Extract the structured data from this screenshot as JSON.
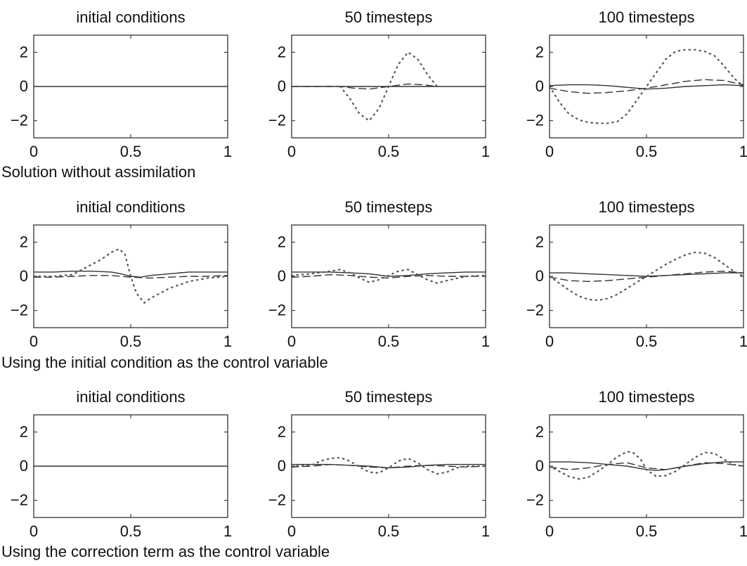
{
  "rows": [
    {
      "caption": "Solution without assimilation",
      "panels": [
        {
          "title": "initial conditions"
        },
        {
          "title": "50 timesteps"
        },
        {
          "title": "100 timesteps"
        }
      ]
    },
    {
      "caption": "Using the initial condition as the control variable",
      "panels": [
        {
          "title": "initial conditions"
        },
        {
          "title": "50 timesteps"
        },
        {
          "title": "100 timesteps"
        }
      ]
    },
    {
      "caption": "Using the correction term as the control variable",
      "panels": [
        {
          "title": "initial conditions"
        },
        {
          "title": "50 timesteps"
        },
        {
          "title": "100 timesteps"
        }
      ]
    }
  ],
  "chart_data": [
    {
      "type": "line",
      "title": "initial conditions",
      "xlim": [
        0,
        1
      ],
      "ylim": [
        -3,
        3
      ],
      "xticks": [
        0,
        0.5,
        1
      ],
      "xtick_labels": [
        "0",
        "0.5",
        "1"
      ],
      "yticks": [
        2,
        0,
        -2
      ],
      "ytick_labels": [
        "2",
        "0",
        "−2"
      ],
      "series": [
        {
          "style": "solid",
          "x": [
            0,
            1
          ],
          "y": [
            0,
            0
          ]
        }
      ]
    },
    {
      "type": "line",
      "title": "50 timesteps",
      "xlim": [
        0,
        1
      ],
      "ylim": [
        -3,
        3
      ],
      "xticks": [
        0,
        0.5,
        1
      ],
      "xtick_labels": [
        "0",
        "0.5",
        "1"
      ],
      "yticks": [
        2,
        0,
        -2
      ],
      "ytick_labels": [
        "2",
        "0",
        "−2"
      ],
      "series": [
        {
          "style": "solid",
          "x": [
            0,
            1
          ],
          "y": [
            0,
            0
          ]
        },
        {
          "style": "dashed",
          "x": [
            0,
            0.25,
            0.32,
            0.4,
            0.5,
            0.6,
            0.68,
            0.75
          ],
          "y": [
            0,
            0,
            -0.1,
            -0.15,
            0,
            0.15,
            0.1,
            0
          ]
        },
        {
          "style": "dotted",
          "x": [
            0.25,
            0.3,
            0.35,
            0.4,
            0.45,
            0.5,
            0.55,
            0.6,
            0.65,
            0.7,
            0.75
          ],
          "y": [
            0,
            -0.7,
            -1.6,
            -2.0,
            -1.3,
            0,
            1.3,
            2.0,
            1.6,
            0.7,
            0
          ]
        }
      ]
    },
    {
      "type": "line",
      "title": "100 timesteps",
      "xlim": [
        0,
        1
      ],
      "ylim": [
        -3,
        3
      ],
      "xticks": [
        0,
        0.5,
        1
      ],
      "xtick_labels": [
        "0",
        "0.5",
        "1"
      ],
      "yticks": [
        2,
        0,
        -2
      ],
      "ytick_labels": [
        "2",
        "0",
        "−2"
      ],
      "series": [
        {
          "style": "solid",
          "x": [
            0,
            0.1,
            0.2,
            0.3,
            0.4,
            0.5,
            0.6,
            0.7,
            0.8,
            0.9,
            1
          ],
          "y": [
            0.05,
            0.1,
            0.1,
            0.05,
            -0.05,
            -0.15,
            -0.1,
            0,
            0.05,
            0.1,
            0.05
          ]
        },
        {
          "style": "dashed",
          "x": [
            0,
            0.1,
            0.2,
            0.3,
            0.4,
            0.5,
            0.6,
            0.7,
            0.8,
            0.9,
            1
          ],
          "y": [
            -0.1,
            -0.3,
            -0.4,
            -0.35,
            -0.25,
            -0.1,
            0.1,
            0.3,
            0.4,
            0.35,
            0.1
          ]
        },
        {
          "style": "dotted",
          "x": [
            0,
            0.05,
            0.1,
            0.15,
            0.2,
            0.25,
            0.3,
            0.35,
            0.4,
            0.45,
            0.5,
            0.55,
            0.6,
            0.65,
            0.7,
            0.75,
            0.8,
            0.85,
            0.9,
            0.95,
            1
          ],
          "y": [
            0,
            -0.9,
            -1.6,
            -1.95,
            -2.1,
            -2.15,
            -2.15,
            -2.05,
            -1.6,
            -0.8,
            0,
            0.8,
            1.6,
            2.05,
            2.15,
            2.15,
            2.05,
            1.8,
            1.2,
            0.5,
            0
          ]
        }
      ]
    },
    {
      "type": "line",
      "title": "initial conditions",
      "xlim": [
        0,
        1
      ],
      "ylim": [
        -3,
        3
      ],
      "xticks": [
        0,
        0.5,
        1
      ],
      "xtick_labels": [
        "0",
        "0.5",
        "1"
      ],
      "yticks": [
        2,
        0,
        -2
      ],
      "ytick_labels": [
        "2",
        "0",
        "−2"
      ],
      "series": [
        {
          "style": "solid",
          "x": [
            0,
            0.1,
            0.2,
            0.3,
            0.4,
            0.45,
            0.5,
            0.55,
            0.6,
            0.7,
            0.8,
            0.9,
            1
          ],
          "y": [
            0.25,
            0.25,
            0.3,
            0.3,
            0.25,
            0.15,
            0,
            -0.05,
            0.05,
            0.15,
            0.25,
            0.25,
            0.25
          ]
        },
        {
          "style": "dashed",
          "x": [
            0,
            0.1,
            0.2,
            0.3,
            0.4,
            0.5,
            0.6,
            0.7,
            0.8,
            0.9,
            1
          ],
          "y": [
            -0.05,
            -0.05,
            0,
            0.05,
            0.05,
            -0.05,
            -0.1,
            -0.05,
            0,
            0,
            0.05
          ]
        },
        {
          "style": "dotted",
          "x": [
            0,
            0.1,
            0.2,
            0.3,
            0.35,
            0.4,
            0.44,
            0.47,
            0.5,
            0.53,
            0.57,
            0.6,
            0.65,
            0.7,
            0.8,
            0.9,
            1
          ],
          "y": [
            0,
            0,
            0.1,
            0.7,
            1.0,
            1.4,
            1.6,
            1.3,
            0,
            -1.0,
            -1.55,
            -1.3,
            -1.0,
            -0.7,
            -0.3,
            -0.1,
            0
          ]
        }
      ]
    },
    {
      "type": "line",
      "title": "50 timesteps",
      "xlim": [
        0,
        1
      ],
      "ylim": [
        -3,
        3
      ],
      "xticks": [
        0,
        0.5,
        1
      ],
      "xtick_labels": [
        "0",
        "0.5",
        "1"
      ],
      "yticks": [
        2,
        0,
        -2
      ],
      "ytick_labels": [
        "2",
        "0",
        "−2"
      ],
      "series": [
        {
          "style": "solid",
          "x": [
            0,
            0.1,
            0.2,
            0.3,
            0.4,
            0.5,
            0.6,
            0.7,
            0.8,
            0.9,
            1
          ],
          "y": [
            0.25,
            0.25,
            0.25,
            0.2,
            0.15,
            0,
            0.05,
            0.15,
            0.2,
            0.25,
            0.25
          ]
        },
        {
          "style": "dashed",
          "x": [
            0,
            0.1,
            0.2,
            0.3,
            0.4,
            0.5,
            0.6,
            0.7,
            0.8,
            0.9,
            1
          ],
          "y": [
            -0.05,
            0,
            0.1,
            0.05,
            -0.05,
            -0.1,
            0,
            0.05,
            0,
            0,
            0
          ]
        },
        {
          "style": "dotted",
          "x": [
            0,
            0.1,
            0.2,
            0.25,
            0.3,
            0.35,
            0.4,
            0.45,
            0.5,
            0.55,
            0.6,
            0.65,
            0.7,
            0.75,
            0.8,
            0.9,
            1
          ],
          "y": [
            0.05,
            0.15,
            0.3,
            0.4,
            0.2,
            -0.1,
            -0.35,
            -0.2,
            0.05,
            0.3,
            0.4,
            0.1,
            -0.2,
            -0.4,
            -0.25,
            0,
            0.05
          ]
        }
      ]
    },
    {
      "type": "line",
      "title": "100 timesteps",
      "xlim": [
        0,
        1
      ],
      "ylim": [
        -3,
        3
      ],
      "xticks": [
        0,
        0.5,
        1
      ],
      "xtick_labels": [
        "0",
        "0.5",
        "1"
      ],
      "yticks": [
        2,
        0,
        -2
      ],
      "ytick_labels": [
        "2",
        "0",
        "−2"
      ],
      "series": [
        {
          "style": "solid",
          "x": [
            0,
            0.1,
            0.2,
            0.3,
            0.4,
            0.5,
            0.6,
            0.7,
            0.8,
            0.9,
            1
          ],
          "y": [
            0.2,
            0.2,
            0.15,
            0.1,
            0.05,
            0,
            0.05,
            0.1,
            0.15,
            0.2,
            0.2
          ]
        },
        {
          "style": "dashed",
          "x": [
            0,
            0.1,
            0.2,
            0.3,
            0.4,
            0.5,
            0.6,
            0.7,
            0.8,
            0.9,
            1
          ],
          "y": [
            -0.05,
            -0.25,
            -0.3,
            -0.25,
            -0.15,
            -0.05,
            0.05,
            0.15,
            0.25,
            0.3,
            0.2
          ]
        },
        {
          "style": "dotted",
          "x": [
            0,
            0.05,
            0.1,
            0.15,
            0.2,
            0.25,
            0.3,
            0.35,
            0.4,
            0.45,
            0.5,
            0.55,
            0.6,
            0.65,
            0.7,
            0.75,
            0.8,
            0.85,
            0.9,
            0.95,
            1
          ],
          "y": [
            0,
            -0.4,
            -0.8,
            -1.15,
            -1.35,
            -1.4,
            -1.3,
            -1.05,
            -0.7,
            -0.35,
            0,
            0.35,
            0.7,
            1.0,
            1.25,
            1.4,
            1.35,
            1.1,
            0.7,
            0.3,
            0
          ]
        }
      ]
    },
    {
      "type": "line",
      "title": "initial conditions",
      "xlim": [
        0,
        1
      ],
      "ylim": [
        -3,
        3
      ],
      "xticks": [
        0,
        0.5,
        1
      ],
      "xtick_labels": [
        "0",
        "0.5",
        "1"
      ],
      "yticks": [
        2,
        0,
        -2
      ],
      "ytick_labels": [
        "2",
        "0",
        "−2"
      ],
      "series": [
        {
          "style": "solid",
          "x": [
            0,
            1
          ],
          "y": [
            0,
            0
          ]
        }
      ]
    },
    {
      "type": "line",
      "title": "50 timesteps",
      "xlim": [
        0,
        1
      ],
      "ylim": [
        -3,
        3
      ],
      "xticks": [
        0,
        0.5,
        1
      ],
      "xtick_labels": [
        "0",
        "0.5",
        "1"
      ],
      "yticks": [
        2,
        0,
        -2
      ],
      "ytick_labels": [
        "2",
        "0",
        "−2"
      ],
      "series": [
        {
          "style": "solid",
          "x": [
            0,
            0.1,
            0.2,
            0.3,
            0.4,
            0.5,
            0.6,
            0.7,
            0.8,
            0.9,
            1
          ],
          "y": [
            0.1,
            0.1,
            0.1,
            0.05,
            0,
            -0.1,
            -0.05,
            0.05,
            0.1,
            0.1,
            0.1
          ]
        },
        {
          "style": "dashed",
          "x": [
            0,
            0.1,
            0.2,
            0.3,
            0.4,
            0.5,
            0.6,
            0.7,
            0.8,
            0.9,
            1
          ],
          "y": [
            -0.05,
            0,
            0.1,
            0.05,
            -0.05,
            -0.1,
            0,
            0.05,
            0,
            -0.05,
            0
          ]
        },
        {
          "style": "dotted",
          "x": [
            0,
            0.1,
            0.15,
            0.2,
            0.25,
            0.3,
            0.35,
            0.4,
            0.45,
            0.5,
            0.55,
            0.6,
            0.65,
            0.7,
            0.75,
            0.8,
            0.85,
            0.9,
            1
          ],
          "y": [
            0,
            0.05,
            0.3,
            0.45,
            0.5,
            0.3,
            -0.05,
            -0.35,
            -0.4,
            -0.1,
            0.3,
            0.45,
            0.2,
            -0.2,
            -0.45,
            -0.35,
            -0.1,
            0,
            0
          ]
        }
      ]
    },
    {
      "type": "line",
      "title": "100 timesteps",
      "xlim": [
        0,
        1
      ],
      "ylim": [
        -3,
        3
      ],
      "xticks": [
        0,
        0.5,
        1
      ],
      "xtick_labels": [
        "0",
        "0.5",
        "1"
      ],
      "yticks": [
        2,
        0,
        -2
      ],
      "ytick_labels": [
        "2",
        "0",
        "−2"
      ],
      "series": [
        {
          "style": "solid",
          "x": [
            0,
            0.1,
            0.2,
            0.3,
            0.4,
            0.5,
            0.55,
            0.6,
            0.7,
            0.8,
            0.9,
            1
          ],
          "y": [
            0.25,
            0.25,
            0.2,
            0.1,
            0,
            -0.2,
            -0.25,
            -0.2,
            0,
            0.15,
            0.25,
            0.25
          ]
        },
        {
          "style": "dashed",
          "x": [
            0,
            0.1,
            0.2,
            0.3,
            0.4,
            0.5,
            0.6,
            0.7,
            0.8,
            0.9,
            1
          ],
          "y": [
            -0.05,
            -0.2,
            -0.1,
            0.1,
            0.2,
            -0.1,
            -0.2,
            0,
            0.2,
            0.15,
            0
          ]
        },
        {
          "style": "dotted",
          "x": [
            0,
            0.05,
            0.1,
            0.15,
            0.2,
            0.25,
            0.3,
            0.35,
            0.4,
            0.43,
            0.47,
            0.5,
            0.55,
            0.6,
            0.65,
            0.7,
            0.75,
            0.8,
            0.85,
            0.9,
            0.95,
            1
          ],
          "y": [
            0,
            -0.3,
            -0.6,
            -0.75,
            -0.65,
            -0.3,
            0.1,
            0.55,
            0.85,
            0.8,
            0.4,
            -0.2,
            -0.6,
            -0.55,
            -0.3,
            0.1,
            0.5,
            0.8,
            0.75,
            0.4,
            0.1,
            0
          ]
        }
      ]
    }
  ]
}
